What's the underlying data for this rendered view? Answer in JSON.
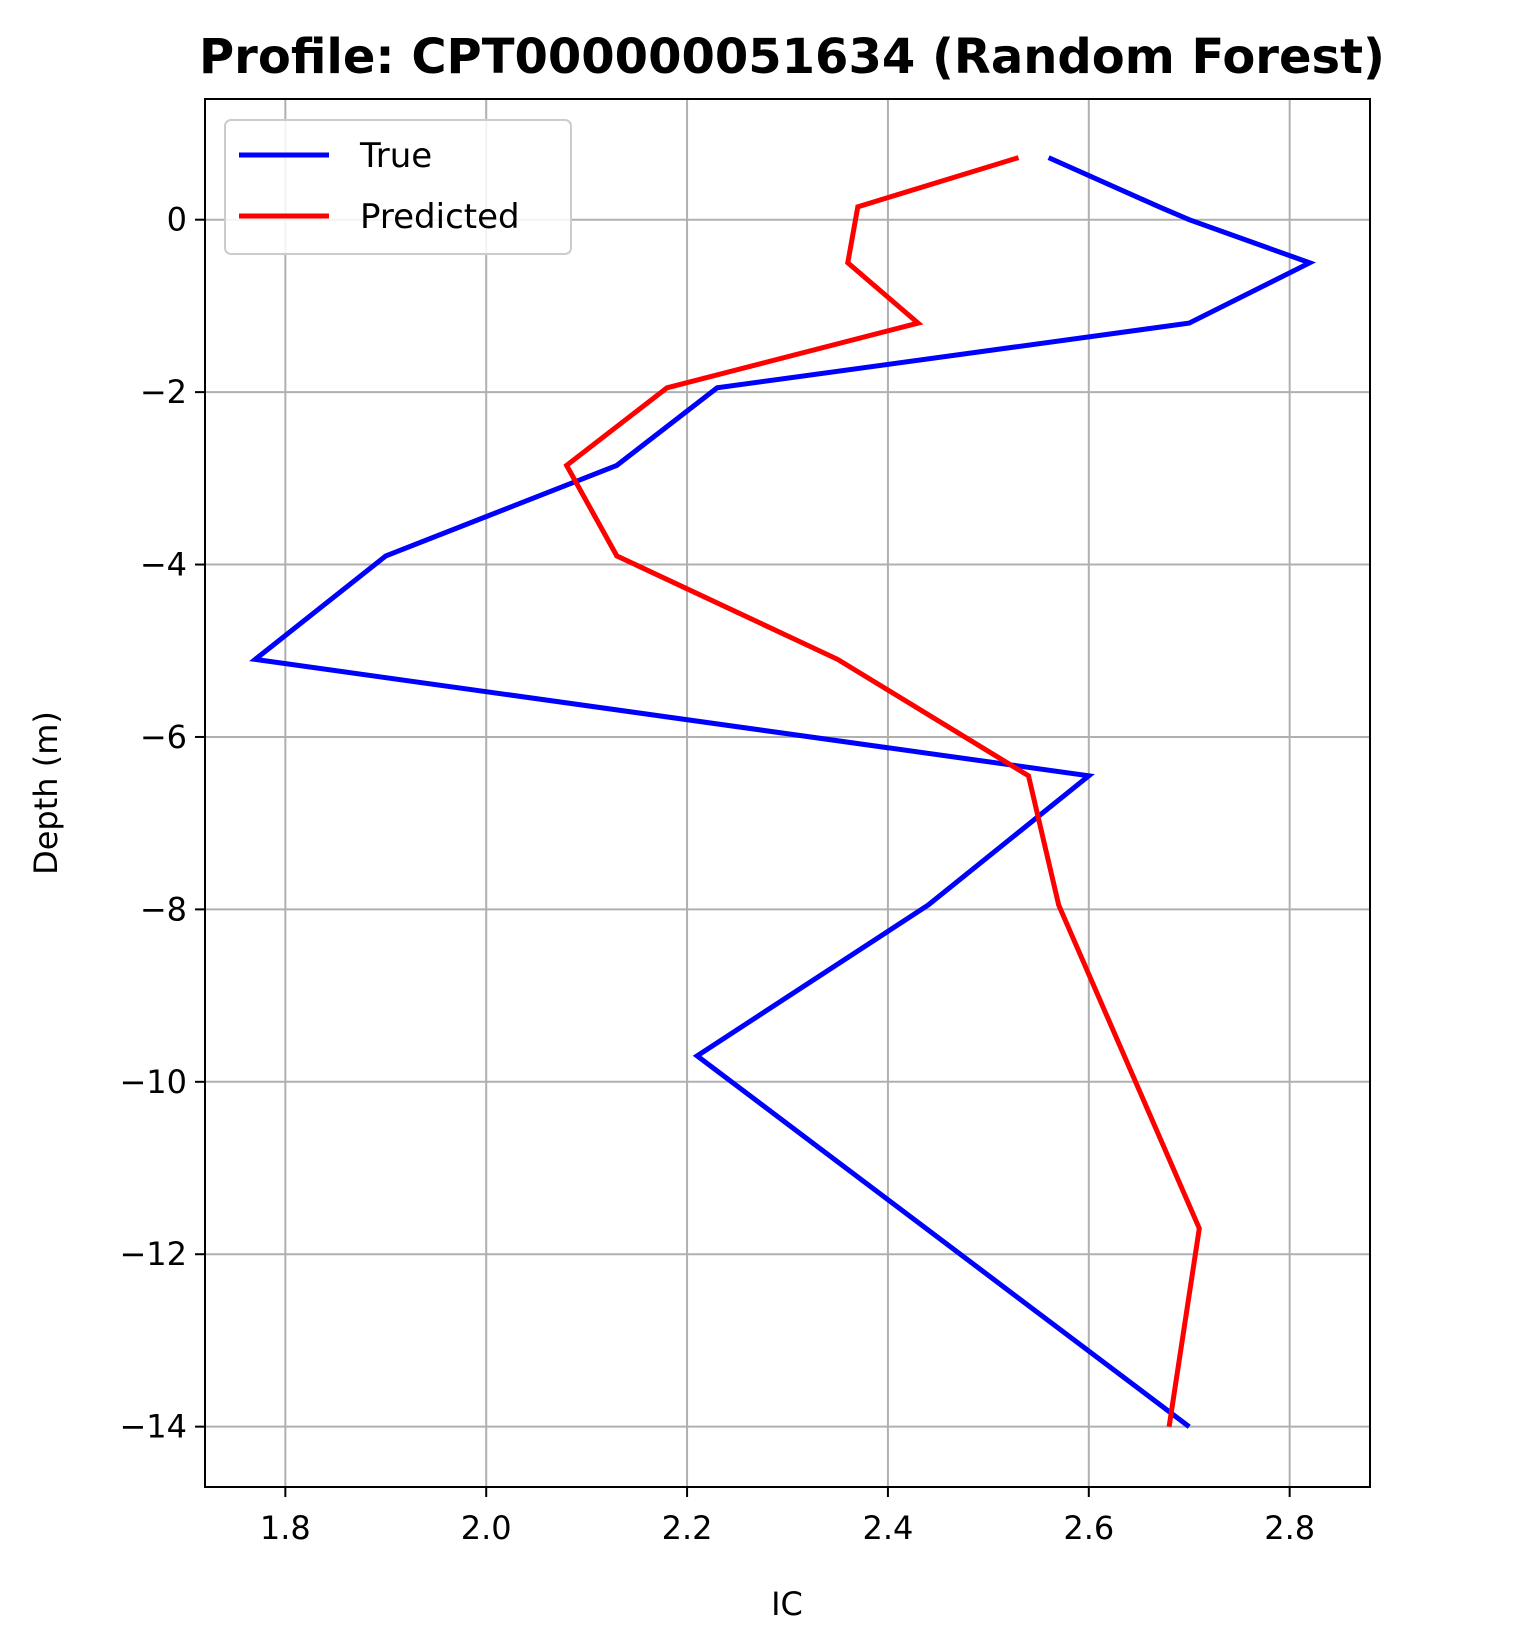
{
  "chart_data": {
    "type": "line",
    "title": "Profile: CPT000000051634 (Random Forest)",
    "xlabel": "IC",
    "ylabel": "Depth (m)",
    "xlim": [
      1.72,
      2.88
    ],
    "ylim": [
      -14.7,
      1.4
    ],
    "grid": true,
    "legend_position": "top-left",
    "xticks": [
      1.8,
      2.0,
      2.2,
      2.4,
      2.6,
      2.8
    ],
    "yticks": [
      0,
      -2,
      -4,
      -6,
      -8,
      -10,
      -12,
      -14
    ],
    "xtick_labels": [
      "1.8",
      "2.0",
      "2.2",
      "2.4",
      "2.6",
      "2.8"
    ],
    "ytick_labels": [
      "0",
      "−2",
      "−4",
      "−6",
      "−8",
      "−10",
      "−12",
      "−14"
    ],
    "series": [
      {
        "name": "True",
        "color": "#0000ff",
        "x": [
          2.56,
          2.67,
          2.7,
          2.82,
          2.7,
          2.23,
          2.13,
          1.9,
          1.77,
          2.6,
          2.44,
          2.21,
          2.7
        ],
        "y": [
          0.72,
          0.15,
          0.0,
          -0.5,
          -1.2,
          -1.95,
          -2.85,
          -3.9,
          -5.1,
          -6.45,
          -7.95,
          -9.7,
          -14.0
        ]
      },
      {
        "name": "Predicted",
        "color": "#ff0000",
        "x": [
          2.53,
          2.37,
          2.36,
          2.43,
          2.18,
          2.08,
          2.13,
          2.35,
          2.54,
          2.57,
          2.71,
          2.68
        ],
        "y": [
          0.72,
          0.15,
          -0.5,
          -1.2,
          -1.95,
          -2.85,
          -3.9,
          -5.1,
          -6.45,
          -7.95,
          -11.7,
          -14.0
        ]
      }
    ]
  }
}
